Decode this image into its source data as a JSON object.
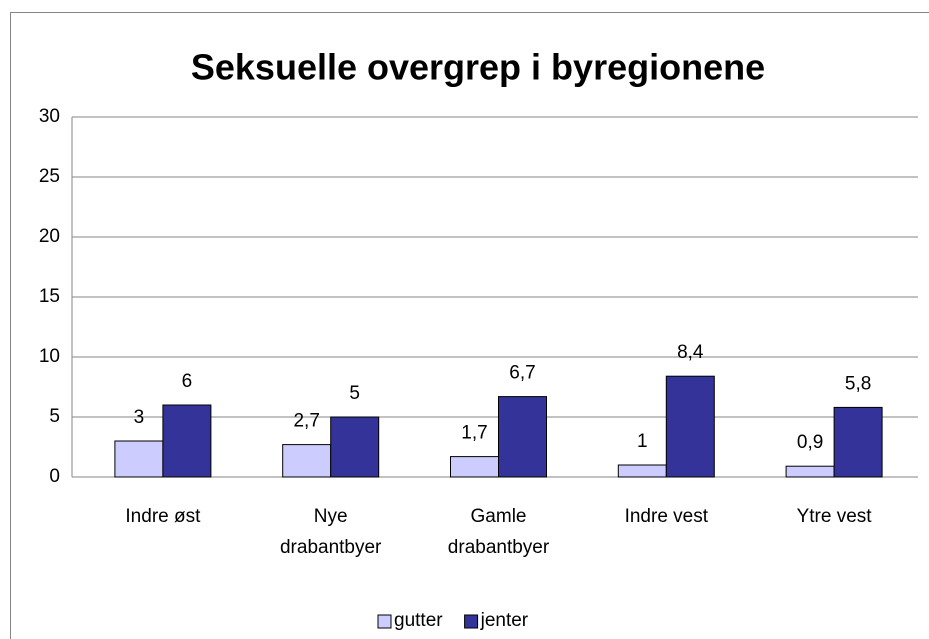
{
  "chart_data": {
    "type": "bar",
    "title": "Seksuelle overgrep i byregionene",
    "categories": [
      "Indre øst",
      "Nye drabantbyer",
      "Gamle drabantbyer",
      "Indre vest",
      "Ytre vest"
    ],
    "series": [
      {
        "name": "gutter",
        "color": "#ccccff",
        "values": [
          3,
          2.7,
          1.7,
          1,
          0.9
        ],
        "value_labels": [
          "3",
          "2,7",
          "1,7",
          "1",
          "0,9"
        ]
      },
      {
        "name": "jenter",
        "color": "#333399",
        "values": [
          6,
          5,
          6.7,
          8.4,
          5.8
        ],
        "value_labels": [
          "6",
          "5",
          "6,7",
          "8,4",
          "5,8"
        ]
      }
    ],
    "ylim": [
      0,
      30
    ],
    "yticks": [
      0,
      5,
      10,
      15,
      20,
      25,
      30
    ],
    "grid": true,
    "legend": "bottom"
  }
}
